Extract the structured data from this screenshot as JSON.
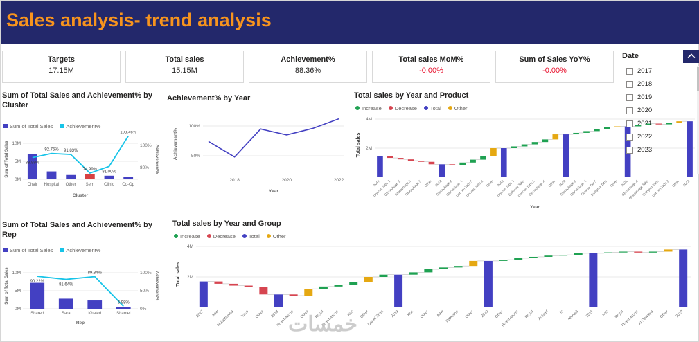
{
  "header": {
    "title": "Sales analysis- trend analysis"
  },
  "kpis": [
    {
      "label": "Targets",
      "value": "17.15M",
      "value_color": "dark"
    },
    {
      "label": "Total sales",
      "value": "15.15M",
      "value_color": "dark"
    },
    {
      "label": "Achievement%",
      "value": "88.36%",
      "value_color": "dark"
    },
    {
      "label": "Total sales MoM%",
      "value": "-0.00%",
      "value_color": "red"
    },
    {
      "label": "Sum of Sales YoY%",
      "value": "-0.00%",
      "value_color": "red"
    }
  ],
  "slicer": {
    "title": "Date",
    "items": [
      {
        "label": "2017",
        "checked": false
      },
      {
        "label": "2018",
        "checked": false
      },
      {
        "label": "2019",
        "checked": false
      },
      {
        "label": "2020",
        "checked": false
      },
      {
        "label": "2021",
        "checked": false
      },
      {
        "label": "2022",
        "checked": false
      },
      {
        "label": "2023",
        "checked": false
      }
    ]
  },
  "watermark": "خمسات",
  "colors": {
    "header_bg": "#23286B",
    "header_text": "#F7941E",
    "kpi_red": "#E8112D",
    "title_text": "#252423",
    "axis_text": "#666666",
    "grid": "#E8E8E8",
    "connector": "#BBBBBB",
    "bar_blue": "#4340C2",
    "bar_red": "#D64242",
    "line_cyan": "#17C4E8",
    "wf_increase": "#1FA152",
    "wf_decrease": "#D64550",
    "wf_total": "#4340C2",
    "wf_other": "#E5A812"
  },
  "chart_data": [
    {
      "type": "bar",
      "subtype": "combo-bar-line",
      "title": "Sum of Total Sales and Achievement% by Cluster",
      "xlabel": "Cluster",
      "categories": [
        "Chair",
        "Hospital",
        "Other",
        "Sem",
        "Clinic",
        "Co-Op"
      ],
      "bar_series": {
        "name": "Sum of Total Sales",
        "unit": "M",
        "values": [
          7.0,
          2.2,
          1.2,
          1.5,
          1.0,
          0.7
        ],
        "bar_colors": [
          "blue",
          "blue",
          "blue",
          "red",
          "blue",
          "blue"
        ]
      },
      "line_series": {
        "name": "Achievement%",
        "values": [
          88.99,
          92.75,
          91.83,
          74.99,
          81.0,
          108.46
        ],
        "labels": [
          "88.99%",
          "92.75%",
          "91.83%",
          "74.99%",
          "81.00%",
          "108.46%"
        ],
        "label_pos": [
          "below",
          "above",
          "above",
          "above",
          "below",
          "above"
        ]
      },
      "y_left": {
        "label": "Sum of Total Sales",
        "ticks": [
          {
            "v": 0,
            "t": "0M"
          },
          {
            "v": 5,
            "t": "5M"
          },
          {
            "v": 10,
            "t": "10M"
          }
        ]
      },
      "y_right": {
        "label": "Achievement%",
        "ticks": [
          {
            "v": 80,
            "t": "80%"
          },
          {
            "v": 100,
            "t": "100%"
          }
        ]
      }
    },
    {
      "type": "line",
      "title": "Achievement% by Year",
      "xlabel": "Year",
      "ylabel": "Achievement%",
      "x": [
        2017,
        2018,
        2019,
        2020,
        2021,
        2022
      ],
      "values": [
        74,
        48,
        95,
        85,
        96,
        112
      ],
      "xticks": [
        2018,
        2020,
        2022
      ],
      "yticks": [
        {
          "v": 50,
          "t": "50%"
        },
        {
          "v": 100,
          "t": "100%"
        }
      ]
    },
    {
      "type": "bar",
      "subtype": "waterfall",
      "title": "Total sales by Year and Product",
      "xlabel": "Year",
      "ylabel": "Total sales",
      "unit": "M",
      "ylim": [
        0,
        4
      ],
      "legend": [
        {
          "label": "Increase",
          "key": "wf_increase"
        },
        {
          "label": "Decrease",
          "key": "wf_decrease"
        },
        {
          "label": "Total",
          "key": "wf_total"
        },
        {
          "label": "Other",
          "key": "wf_other"
        }
      ],
      "yticks": [
        {
          "v": 2,
          "t": "2M"
        },
        {
          "v": 4,
          "t": "4M"
        }
      ],
      "items": [
        {
          "label": "2017",
          "type": "total",
          "value": 1.45
        },
        {
          "label": "Concon Tabs 2",
          "type": "dec",
          "value": 0.12
        },
        {
          "label": "Glucophage X",
          "type": "dec",
          "value": 0.1
        },
        {
          "label": "Glucophage 8",
          "type": "dec",
          "value": 0.09
        },
        {
          "label": "Glucophage 5",
          "type": "dec",
          "value": 0.08
        },
        {
          "label": "Other",
          "type": "dec",
          "value": 0.17
        },
        {
          "label": "2018",
          "type": "total",
          "value": null
        },
        {
          "label": "Glucophage 8",
          "type": "dec",
          "value": 0.06
        },
        {
          "label": "Glucophage X",
          "type": "inc",
          "value": 0.18
        },
        {
          "label": "Concon Tabs 5",
          "type": "inc",
          "value": 0.2
        },
        {
          "label": "Concon Tabs 2",
          "type": "inc",
          "value": 0.24
        },
        {
          "label": "Other",
          "type": "other",
          "value": 0.55
        },
        {
          "label": "2019",
          "type": "total",
          "value": null
        },
        {
          "label": "Concon Tabs 1",
          "type": "inc",
          "value": 0.12
        },
        {
          "label": "Euthyrox Tabs",
          "type": "inc",
          "value": 0.14
        },
        {
          "label": "Concon Tabs 5",
          "type": "inc",
          "value": 0.16
        },
        {
          "label": "Glucophage X",
          "type": "inc",
          "value": 0.18
        },
        {
          "label": "Other",
          "type": "other",
          "value": 0.35
        },
        {
          "label": "2020",
          "type": "total",
          "value": null
        },
        {
          "label": "Glucophage 2",
          "type": "inc",
          "value": 0.1
        },
        {
          "label": "Glucophage X",
          "type": "inc",
          "value": 0.12
        },
        {
          "label": "Concon Tab 5",
          "type": "inc",
          "value": 0.13
        },
        {
          "label": "Euthyrox Tabs",
          "type": "inc",
          "value": 0.15
        },
        {
          "label": "Other",
          "type": "other",
          "value": 0.05
        },
        {
          "label": "2021",
          "type": "total",
          "value": null
        },
        {
          "label": "Glucophage X",
          "type": "inc",
          "value": 0.1
        },
        {
          "label": "Glucophage Tabs",
          "type": "inc",
          "value": 0.09
        },
        {
          "label": "Euthyrox Tabs",
          "type": "dec",
          "value": 0.05
        },
        {
          "label": "Concon Tabs 2",
          "type": "inc",
          "value": 0.11
        },
        {
          "label": "Other",
          "type": "other",
          "value": 0.1
        },
        {
          "label": "2022",
          "type": "total",
          "value": null
        }
      ]
    },
    {
      "type": "bar",
      "subtype": "combo-bar-line",
      "title": "Sum of Total Sales and Achievement% by Rep",
      "xlabel": "Rep",
      "categories": [
        "Shared",
        "Sara",
        "Khaled",
        "Shamel"
      ],
      "bar_series": {
        "name": "Sum of Total Sales",
        "unit": "M",
        "values": [
          7.2,
          2.8,
          2.3,
          0.4
        ],
        "bar_colors": [
          "blue",
          "blue",
          "blue",
          "blue"
        ]
      },
      "line_series": {
        "name": "Achievement%",
        "values": [
          90.22,
          81.64,
          89.34,
          6.98
        ],
        "labels": [
          "90.22%",
          "81.64%",
          "89.34%",
          "6.98%"
        ],
        "label_pos": [
          "below",
          "below",
          "above",
          "above"
        ]
      },
      "y_left": {
        "label": "Sum of Total Sales",
        "ticks": [
          {
            "v": 0,
            "t": "0M"
          },
          {
            "v": 5,
            "t": "5M"
          },
          {
            "v": 10,
            "t": "10M"
          }
        ]
      },
      "y_right": {
        "label": "Achievement%",
        "ticks": [
          {
            "v": 0,
            "t": "0%"
          },
          {
            "v": 50,
            "t": "50%"
          },
          {
            "v": 100,
            "t": "100%"
          }
        ]
      }
    },
    {
      "type": "bar",
      "subtype": "waterfall",
      "title": "Total sales by Year and Group",
      "ylabel": "Total sales",
      "unit": "M",
      "ylim": [
        0,
        4
      ],
      "legend": [
        {
          "label": "Increase",
          "key": "wf_increase"
        },
        {
          "label": "Decrease",
          "key": "wf_decrease"
        },
        {
          "label": "Total",
          "key": "wf_total"
        },
        {
          "label": "Other",
          "key": "wf_other"
        }
      ],
      "yticks": [
        {
          "v": 2,
          "t": "2M"
        },
        {
          "v": 4,
          "t": "4M"
        }
      ],
      "items": [
        {
          "label": "2017",
          "type": "total",
          "value": 1.7
        },
        {
          "label": "Aaw",
          "type": "dec",
          "value": 0.15
        },
        {
          "label": "Multipharma",
          "type": "dec",
          "value": 0.12
        },
        {
          "label": "Yaco",
          "type": "dec",
          "value": 0.1
        },
        {
          "label": "Other",
          "type": "dec",
          "value": 0.48
        },
        {
          "label": "2018",
          "type": "total",
          "value": null
        },
        {
          "label": "Pharmazone",
          "type": "dec",
          "value": 0.08
        },
        {
          "label": "Other",
          "type": "other",
          "value": 0.45
        },
        {
          "label": "Royal",
          "type": "inc",
          "value": 0.15
        },
        {
          "label": "Pharmazone",
          "type": "inc",
          "value": 0.12
        },
        {
          "label": "Koc",
          "type": "inc",
          "value": 0.18
        },
        {
          "label": "Other",
          "type": "other",
          "value": 0.33
        },
        {
          "label": "Dar Al Shifa",
          "type": "inc",
          "value": 0.15
        },
        {
          "label": "2019",
          "type": "total",
          "value": null
        },
        {
          "label": "Koc",
          "type": "inc",
          "value": 0.15
        },
        {
          "label": "Other",
          "type": "inc",
          "value": 0.2
        },
        {
          "label": "Aaw",
          "type": "inc",
          "value": 0.12
        },
        {
          "label": "Palestine",
          "type": "inc",
          "value": 0.1
        },
        {
          "label": "Other",
          "type": "other",
          "value": 0.33
        },
        {
          "label": "2020",
          "type": "total",
          "value": null
        },
        {
          "label": "Other",
          "type": "inc",
          "value": 0.08
        },
        {
          "label": "Pharmazone",
          "type": "inc",
          "value": 0.1
        },
        {
          "label": "Royal",
          "type": "inc",
          "value": 0.09
        },
        {
          "label": "Al Seef",
          "type": "inc",
          "value": 0.08
        },
        {
          "label": "Ic",
          "type": "inc",
          "value": 0.05
        },
        {
          "label": "Ahmadi",
          "type": "inc",
          "value": 0.1
        },
        {
          "label": "2021",
          "type": "total",
          "value": null
        },
        {
          "label": "Koc",
          "type": "inc",
          "value": 0.06
        },
        {
          "label": "Royal",
          "type": "inc",
          "value": 0.05
        },
        {
          "label": "Pharmazone",
          "type": "dec",
          "value": 0.06
        },
        {
          "label": "Al Dawaiya",
          "type": "inc",
          "value": 0.06
        },
        {
          "label": "Other",
          "type": "other",
          "value": 0.14
        },
        {
          "label": "2022",
          "type": "total",
          "value": null
        }
      ]
    }
  ]
}
